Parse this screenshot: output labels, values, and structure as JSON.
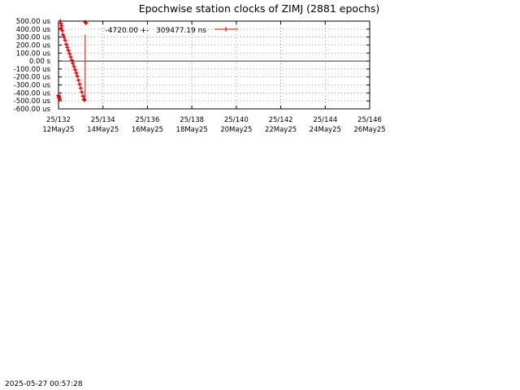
{
  "footer": {
    "timestamp": "2025-05-27 00:57:28"
  },
  "colors": {
    "series": "#dd0000",
    "grid": "#a0a0a0",
    "axis": "#000000",
    "background": "#ffffff"
  },
  "chart_data": {
    "type": "scatter",
    "title": "Epochwise station clocks of ZIMJ (2881 epochs)",
    "xlabel": "",
    "ylabel": "",
    "xlim": [
      132,
      146
    ],
    "ylim": [
      -600,
      500
    ],
    "grid": true,
    "legend_position": "top",
    "y_ticks": [
      {
        "value": 500,
        "label": "500.00 us"
      },
      {
        "value": 400,
        "label": "400.00 us"
      },
      {
        "value": 300,
        "label": "300.00 us"
      },
      {
        "value": 200,
        "label": "200.00 us"
      },
      {
        "value": 100,
        "label": "100.00 us"
      },
      {
        "value": 0,
        "label": "0.00  s"
      },
      {
        "value": -100,
        "label": "-100.00 us"
      },
      {
        "value": -200,
        "label": "-200.00 us"
      },
      {
        "value": -300,
        "label": "-300.00 us"
      },
      {
        "value": -400,
        "label": "-400.00 us"
      },
      {
        "value": -500,
        "label": "-500.00 us"
      },
      {
        "value": -600,
        "label": "-600.00 us"
      }
    ],
    "x_ticks": [
      {
        "value": 132,
        "doy": "25/132",
        "date": "12May25"
      },
      {
        "value": 134,
        "doy": "25/134",
        "date": "14May25"
      },
      {
        "value": 136,
        "doy": "25/136",
        "date": "16May25"
      },
      {
        "value": 138,
        "doy": "25/138",
        "date": "18May25"
      },
      {
        "value": 140,
        "doy": "25/140",
        "date": "20May25"
      },
      {
        "value": 142,
        "doy": "25/142",
        "date": "22May25"
      },
      {
        "value": 144,
        "doy": "25/144",
        "date": "24May25"
      },
      {
        "value": 146,
        "doy": "25/146",
        "date": "26May25"
      }
    ],
    "legend": {
      "mean": "-4720.00",
      "pm": "+-",
      "sigma": "309477.19 ns"
    },
    "series": [
      {
        "points": [
          {
            "x": 132.0,
            "y": -430
          },
          {
            "x": 132.03,
            "y": -460
          },
          {
            "x": 132.06,
            "y": -480
          },
          {
            "x": 132.02,
            "y": -445
          },
          {
            "x": 132.08,
            "y": 500
          },
          {
            "x": 132.11,
            "y": 470
          },
          {
            "x": 132.14,
            "y": 440
          },
          {
            "x": 132.12,
            "y": 410
          },
          {
            "x": 132.17,
            "y": 380
          },
          {
            "x": 132.2,
            "y": 330
          },
          {
            "x": 132.25,
            "y": 300
          },
          {
            "x": 132.3,
            "y": 260
          },
          {
            "x": 132.35,
            "y": 210
          },
          {
            "x": 132.4,
            "y": 170
          },
          {
            "x": 132.45,
            "y": 130
          },
          {
            "x": 132.5,
            "y": 90
          },
          {
            "x": 132.55,
            "y": 50
          },
          {
            "x": 132.6,
            "y": 10
          },
          {
            "x": 132.65,
            "y": -30
          },
          {
            "x": 132.7,
            "y": -70
          },
          {
            "x": 132.75,
            "y": -110
          },
          {
            "x": 132.8,
            "y": -150
          },
          {
            "x": 132.85,
            "y": -190
          },
          {
            "x": 132.9,
            "y": -240
          },
          {
            "x": 132.95,
            "y": -290
          },
          {
            "x": 133.0,
            "y": -340
          },
          {
            "x": 133.05,
            "y": -390
          },
          {
            "x": 133.1,
            "y": -440
          },
          {
            "x": 133.15,
            "y": -480
          },
          {
            "x": 133.17,
            "y": -490
          },
          {
            "x": 133.2,
            "y": 490
          },
          {
            "x": 133.24,
            "y": 475
          }
        ],
        "error_bars": [
          {
            "x": 133.2,
            "y": -70,
            "err": 400
          }
        ]
      }
    ]
  }
}
